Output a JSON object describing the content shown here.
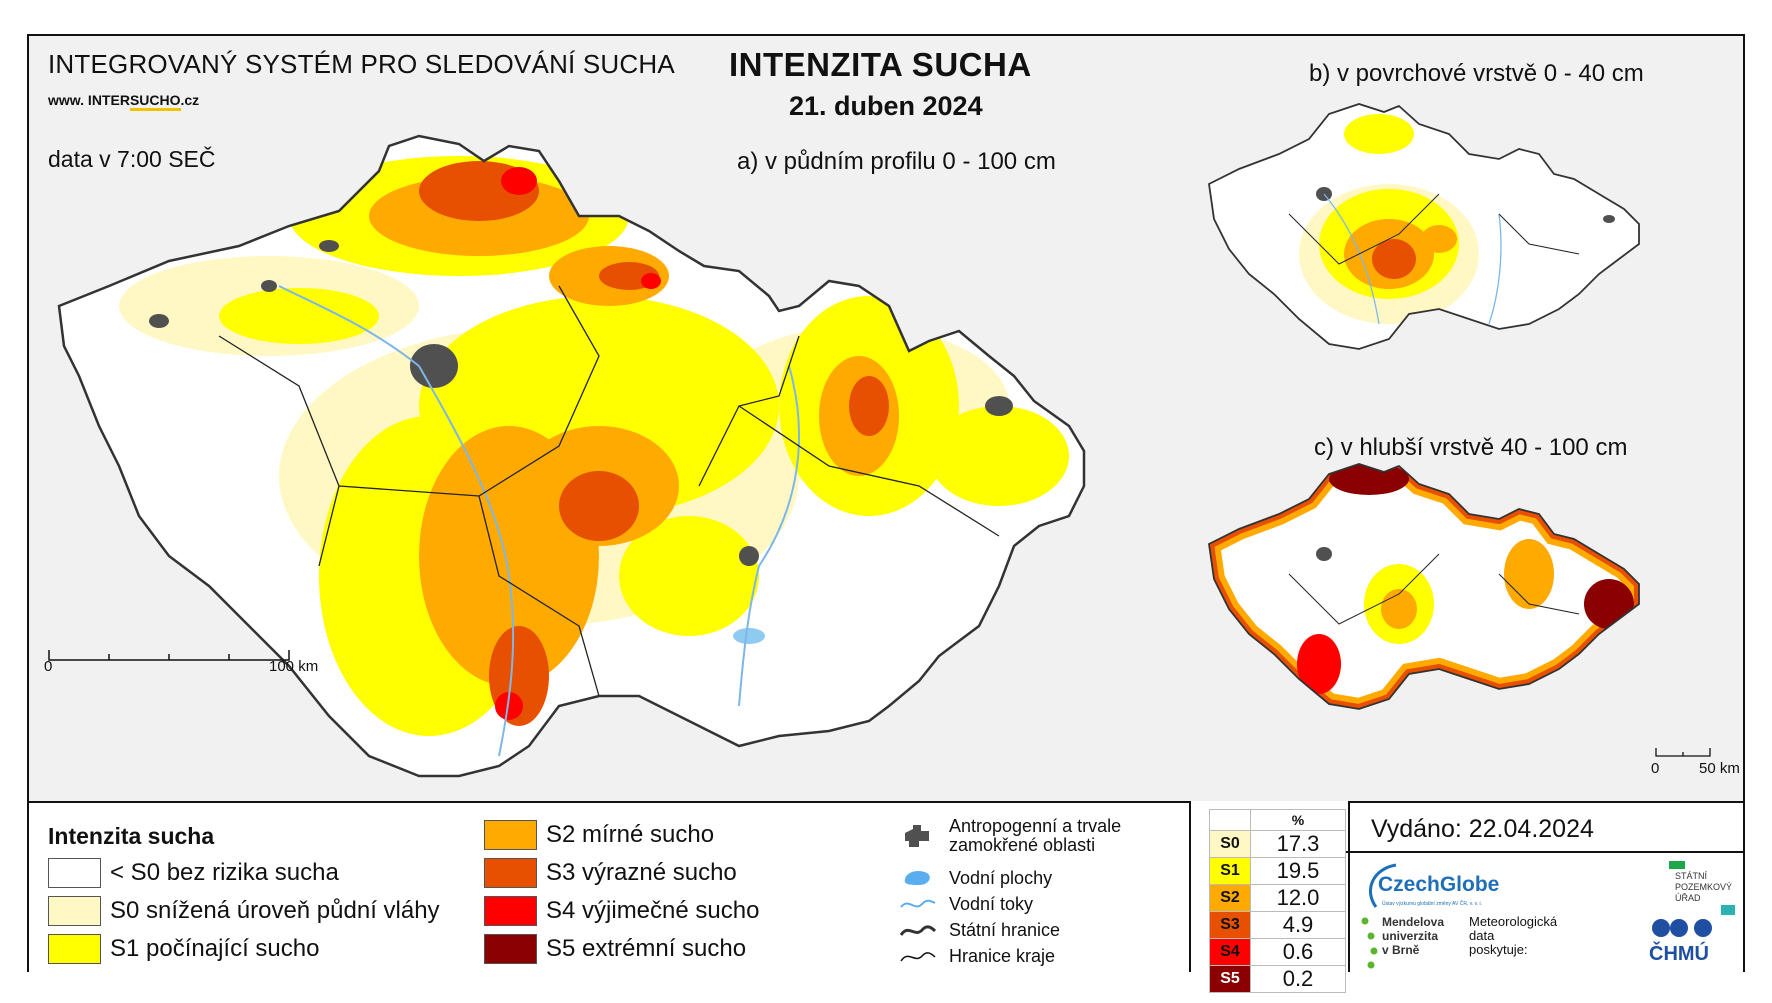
{
  "header": {
    "system_title": "INTEGROVANÝ SYSTÉM PRO SLEDOVÁNÍ SUCHA",
    "website_prefix": "www. INTER",
    "website_emph": "SUCHO",
    "website_suffix": ".cz",
    "data_time": "data v 7:00 SEČ",
    "main_title": "INTENZITA SUCHA",
    "date": "21. duben 2024"
  },
  "maps": {
    "a_label": "a) v půdním profilu 0 - 100 cm",
    "b_label": "b) v povrchové vrstvě 0 - 40 cm",
    "c_label": "c) v hlubší vrstvě 40 - 100 cm",
    "scale_main": {
      "zero": "0",
      "end": "100 km"
    },
    "scale_small": {
      "zero": "0",
      "end": "50 km"
    }
  },
  "legend": {
    "title": "Intenzita sucha",
    "classes": [
      {
        "label": "< S0 bez rizika sucha",
        "color": "#ffffff"
      },
      {
        "label": "S0 snížená úroveň půdní vláhy",
        "color": "#fff8c4"
      },
      {
        "label": "S1 počínající sucho",
        "color": "#ffff00"
      },
      {
        "label": "S2 mírné sucho",
        "color": "#ffaa00"
      },
      {
        "label": "S3 výrazné sucho",
        "color": "#e65000"
      },
      {
        "label": "S4 výjimečné sucho",
        "color": "#ff0000"
      },
      {
        "label": "S5 extrémní sucho",
        "color": "#8b0000"
      }
    ],
    "aux": [
      {
        "label": "Antropogenní a trvale zamokřené oblasti",
        "icon": "urban-area-icon"
      },
      {
        "label": "Vodní plochy",
        "icon": "water-body-icon"
      },
      {
        "label": "Vodní toky",
        "icon": "river-icon"
      },
      {
        "label": "Státní hranice",
        "icon": "state-border-icon"
      },
      {
        "label": "Hranice kraje",
        "icon": "region-border-icon"
      }
    ]
  },
  "stats": {
    "header": "%",
    "rows": [
      {
        "code": "S0",
        "value": "17.3",
        "color": "#fff8c4"
      },
      {
        "code": "S1",
        "value": "19.5",
        "color": "#ffff00"
      },
      {
        "code": "S2",
        "value": "12.0",
        "color": "#ffaa00"
      },
      {
        "code": "S3",
        "value": "4.9",
        "color": "#e65000"
      },
      {
        "code": "S4",
        "value": "0.6",
        "color": "#ff0000"
      },
      {
        "code": "S5",
        "value": "0.2",
        "color": "#8b0000"
      }
    ]
  },
  "footer": {
    "issued": "Vydáno: 22.04.2024",
    "logos": {
      "czechglobe": "CzechGlobe",
      "czechglobe_sub": "Ústav výzkumu globální změny AV ČR, v. v. i.",
      "spu": "STÁTNÍ POZEMKOVÝ ÚŘAD",
      "mendelu": "Mendelova univerzita v Brně",
      "meteo": "Meteorologická data poskytuje:",
      "chmu": "ČHMÚ"
    }
  }
}
